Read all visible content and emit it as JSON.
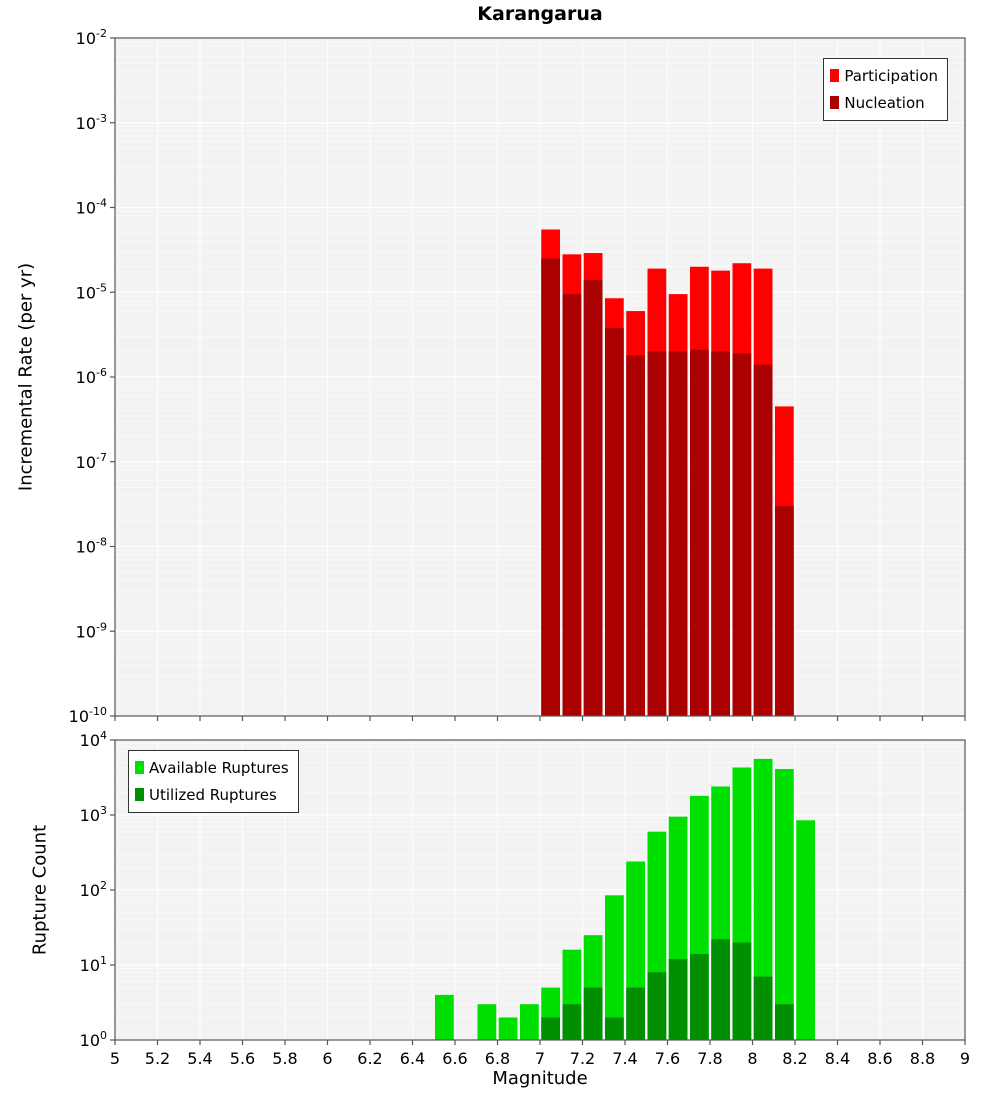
{
  "figure_title": "Karangarua",
  "colors": {
    "plot_bg": "#f3f3f3",
    "grid_major": "#ffffff",
    "grid_minor": "#fafafa",
    "axis": "#555555",
    "tick_text": "#000000"
  },
  "chart_data": [
    {
      "type": "bar",
      "title": "Karangarua",
      "ylabel": "Incremental Rate (per yr)",
      "y_scale": "log",
      "ylim_exp": [
        -10,
        -2
      ],
      "xlim": [
        5,
        9
      ],
      "x_tick_step": 0.2,
      "grid": true,
      "legend_position": "top-right",
      "bin_width": 0.1,
      "series": [
        {
          "name": "Participation",
          "color": "#ff0000",
          "x": [
            7.05,
            7.15,
            7.25,
            7.35,
            7.45,
            7.55,
            7.65,
            7.75,
            7.85,
            7.95,
            8.05,
            8.15
          ],
          "values": [
            5.5e-05,
            2.8e-05,
            2.9e-05,
            8.5e-06,
            6e-06,
            1.9e-05,
            9.5e-06,
            2e-05,
            1.8e-05,
            2.2e-05,
            1.9e-05,
            4.5e-07
          ]
        },
        {
          "name": "Nucleation",
          "color": "#aa0000",
          "x": [
            7.05,
            7.15,
            7.25,
            7.35,
            7.45,
            7.55,
            7.65,
            7.75,
            7.85,
            7.95,
            8.05,
            8.15
          ],
          "values": [
            2.5e-05,
            9.5e-06,
            1.4e-05,
            3.8e-06,
            1.8e-06,
            2e-06,
            2e-06,
            2.1e-06,
            2e-06,
            1.9e-06,
            1.4e-06,
            3e-08
          ]
        }
      ]
    },
    {
      "type": "bar",
      "title": "",
      "ylabel": "Rupture Count",
      "xlabel": "Magnitude",
      "y_scale": "log",
      "ylim_exp": [
        0,
        4
      ],
      "xlim": [
        5,
        9
      ],
      "x_tick_step": 0.2,
      "x_tick_labels": [
        "5",
        "5.2",
        "5.4",
        "5.6",
        "5.8",
        "6",
        "6.2",
        "6.4",
        "6.6",
        "6.8",
        "7",
        "7.2",
        "7.4",
        "7.6",
        "7.8",
        "8",
        "8.2",
        "8.4",
        "8.6",
        "8.8",
        "9"
      ],
      "grid": true,
      "legend_position": "top-left",
      "bin_width": 0.1,
      "series": [
        {
          "name": "Available Ruptures",
          "color": "#00e000",
          "x": [
            6.55,
            6.75,
            6.85,
            6.95,
            7.05,
            7.15,
            7.25,
            7.35,
            7.45,
            7.55,
            7.65,
            7.75,
            7.85,
            7.95,
            8.05,
            8.15,
            8.25
          ],
          "values": [
            4,
            3,
            2,
            3,
            5,
            16,
            25,
            85,
            240,
            600,
            950,
            1800,
            2400,
            4300,
            5600,
            4100,
            850
          ]
        },
        {
          "name": "Utilized Ruptures",
          "color": "#008f00",
          "x": [
            7.05,
            7.15,
            7.25,
            7.35,
            7.45,
            7.55,
            7.65,
            7.75,
            7.85,
            7.95,
            8.05,
            8.15
          ],
          "values": [
            2,
            3,
            5,
            2,
            5,
            8,
            12,
            14,
            22,
            20,
            7,
            3
          ]
        }
      ]
    }
  ]
}
